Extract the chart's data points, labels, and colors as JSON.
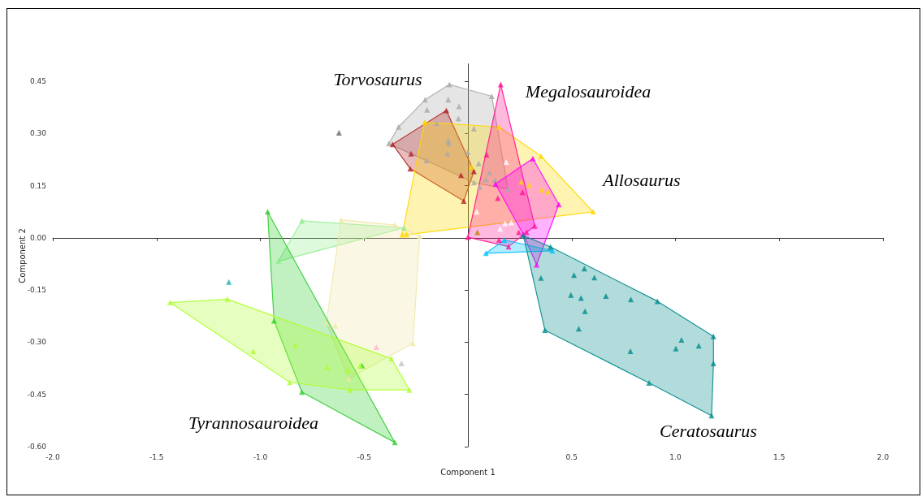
{
  "chart_data": {
    "type": "scatter",
    "xlabel": "Component 1",
    "ylabel": "Component 2",
    "marker": "triangle",
    "xlim": [
      -2,
      2
    ],
    "ylim": [
      -0.6,
      0.5
    ],
    "xticks": [
      {
        "value": -2,
        "label": "-2.0"
      },
      {
        "value": -1.5,
        "label": "-1.5"
      },
      {
        "value": -1,
        "label": "-1.0"
      },
      {
        "value": -0.5,
        "label": "-0.5"
      },
      {
        "value": 0,
        "label": null
      },
      {
        "value": 0.5,
        "label": "0.5"
      },
      {
        "value": 1,
        "label": "1.0"
      },
      {
        "value": 1.5,
        "label": "1.5"
      },
      {
        "value": 2,
        "label": "2.0"
      }
    ],
    "yticks": [
      {
        "value": -0.6,
        "label": "-0.60"
      },
      {
        "value": -0.45,
        "label": "-0.45"
      },
      {
        "value": -0.3,
        "label": "-0.30"
      },
      {
        "value": -0.15,
        "label": "-0.15"
      },
      {
        "value": 0,
        "label": "0.00"
      },
      {
        "value": 0.15,
        "label": "0.15"
      },
      {
        "value": 0.3,
        "label": "0.30"
      },
      {
        "value": 0.45,
        "label": "0.45"
      }
    ],
    "series": [
      {
        "type": "area",
        "marker": "none",
        "color": "#a9a9a9",
        "x": [
          -0.089,
          0.115,
          0.193,
          0.029,
          -0.2,
          -0.381,
          -0.334,
          -0.206
        ],
        "values": [
          0.441,
          0.407,
          0.14,
          0.159,
          0.222,
          0.271,
          0.319,
          0.397
        ]
      },
      {
        "type": "area",
        "marker": "none",
        "color": "#b22222",
        "x": [
          -0.104,
          0.029,
          -0.02,
          -0.278,
          -0.363
        ],
        "values": [
          0.366,
          0.191,
          0.106,
          0.199,
          0.269
        ]
      },
      {
        "type": "area",
        "marker": "none",
        "color": "#ffd700",
        "x": [
          -0.209,
          0.15,
          0.352,
          0.603,
          -0.295,
          -0.317
        ],
        "values": [
          0.332,
          0.319,
          0.235,
          0.075,
          0.009,
          0.009
        ]
      },
      {
        "type": "area",
        "marker": "none",
        "color": "#ff1493",
        "x": [
          0.158,
          0.322,
          0.283,
          0.196,
          0.0
        ],
        "values": [
          0.441,
          0.034,
          0.016,
          -0.025,
          0.002
        ]
      },
      {
        "type": "area",
        "marker": "none",
        "color": "#ff00ff",
        "x": [
          0.313,
          0.438,
          0.331,
          0.266,
          0.133
        ],
        "values": [
          0.228,
          0.096,
          -0.077,
          0.011,
          0.155
        ]
      },
      {
        "type": "area",
        "marker": "none",
        "color": "#00bfff",
        "x": [
          0.087,
          0.176,
          0.407
        ],
        "values": [
          -0.044,
          -0.006,
          -0.037
        ]
      },
      {
        "type": "area",
        "marker": "none",
        "color": "#008b8b",
        "x": [
          0.267,
          0.398,
          0.913,
          1.183,
          1.183,
          1.174,
          0.873,
          0.371
        ],
        "values": [
          0.007,
          -0.026,
          -0.182,
          -0.283,
          -0.361,
          -0.511,
          -0.417,
          -0.265
        ]
      },
      {
        "type": "area",
        "marker": "none",
        "color": "#90ee90",
        "x": [
          -0.8,
          -0.308,
          -0.913
        ],
        "values": [
          0.049,
          0.029,
          -0.067
        ]
      },
      {
        "type": "area",
        "marker": "none",
        "color": "#eee8aa",
        "x": [
          -0.611,
          -0.352,
          -0.232,
          -0.265,
          -0.574,
          -0.682
        ],
        "values": [
          0.052,
          0.037,
          0.005,
          -0.303,
          -0.404,
          -0.244
        ]
      },
      {
        "type": "area",
        "marker": "none",
        "color": "#32cd32",
        "x": [
          -0.965,
          -0.352,
          -0.8,
          -0.934
        ],
        "values": [
          0.075,
          -0.588,
          -0.443,
          -0.238
        ]
      },
      {
        "type": "area",
        "marker": "none",
        "color": "#adff2f",
        "x": [
          -1.435,
          -1.159,
          -0.369,
          -0.282,
          -0.569,
          -0.858
        ],
        "values": [
          -0.186,
          -0.176,
          -0.347,
          -0.437,
          -0.437,
          -0.415
        ]
      },
      {
        "color": "#a9a9a9",
        "x": [
          -0.089,
          -0.206,
          -0.095,
          -0.043,
          -0.197,
          -0.046,
          0.115,
          -0.334,
          -0.381,
          -0.151,
          -0.095,
          -0.091,
          -0.098,
          -0.2,
          0.029,
          -0.001,
          0.052,
          0.104,
          0.087,
          0.13,
          0.029,
          0.057,
          0.193
        ],
        "values": [
          0.441,
          0.397,
          0.397,
          0.378,
          0.368,
          0.343,
          0.407,
          0.319,
          0.271,
          0.329,
          0.279,
          0.271,
          0.242,
          0.222,
          0.314,
          0.246,
          0.214,
          0.187,
          0.168,
          0.166,
          0.159,
          0.146,
          0.14
        ]
      },
      {
        "color": "#b22222",
        "x": [
          -0.104,
          -0.363,
          -0.274,
          -0.278,
          -0.033,
          0.029,
          -0.02
        ],
        "values": [
          0.366,
          0.269,
          0.242,
          0.199,
          0.18,
          0.191,
          0.106
        ]
      },
      {
        "color": "#ffd700",
        "x": [
          -0.209,
          0.15,
          0.352,
          0.603,
          -0.295,
          -0.317,
          0.016,
          0.257,
          0.294,
          0.355,
          0.386
        ],
        "values": [
          0.332,
          0.319,
          0.235,
          0.075,
          0.009,
          0.009,
          0.204,
          0.161,
          0.152,
          0.138,
          0.133
        ]
      },
      {
        "color": "#ff1493",
        "x": [
          0.158,
          0.0,
          0.09,
          0.144,
          0.263,
          0.322,
          0.283,
          0.245,
          0.15,
          0.196
        ],
        "values": [
          0.441,
          0.002,
          0.239,
          0.114,
          0.131,
          0.034,
          0.016,
          0.016,
          -0.006,
          -0.025
        ]
      },
      {
        "color": "#ff00ff",
        "x": [
          0.313,
          0.438,
          0.331,
          0.133,
          0.266
        ],
        "values": [
          0.228,
          0.096,
          -0.077,
          0.155,
          0.011
        ]
      },
      {
        "color": "#00bfff",
        "x": [
          0.087,
          0.176,
          0.407
        ],
        "values": [
          -0.044,
          -0.006,
          -0.037
        ]
      },
      {
        "color": "#008b8b",
        "x": [
          0.267,
          0.398,
          0.913,
          1.183,
          1.183,
          1.174,
          0.873,
          0.371,
          0.352,
          0.561,
          0.511,
          0.609,
          0.496,
          0.545,
          0.665,
          0.785,
          0.564,
          0.534,
          0.783,
          1.029,
          1.002,
          1.112
        ],
        "values": [
          0.007,
          -0.026,
          -0.182,
          -0.283,
          -0.361,
          -0.511,
          -0.417,
          -0.265,
          -0.115,
          -0.088,
          -0.107,
          -0.114,
          -0.164,
          -0.173,
          -0.167,
          -0.177,
          -0.211,
          -0.261,
          -0.326,
          -0.293,
          -0.318,
          -0.31
        ]
      },
      {
        "color": "#90ee90",
        "x": [
          -0.8,
          -0.308,
          -0.913
        ],
        "values": [
          0.049,
          0.029,
          -0.067
        ]
      },
      {
        "color": "#eee8aa",
        "x": [
          -0.611,
          -0.352,
          -0.232,
          -0.265,
          -0.574,
          -0.682,
          -0.639
        ],
        "values": [
          0.052,
          0.037,
          0.005,
          -0.303,
          -0.404,
          -0.244,
          -0.252
        ]
      },
      {
        "color": "#32cd32",
        "x": [
          -0.965,
          -0.934,
          -0.8,
          -0.352,
          -0.51
        ],
        "values": [
          0.075,
          -0.238,
          -0.443,
          -0.588,
          -0.367
        ]
      },
      {
        "color": "#adff2f",
        "x": [
          -1.435,
          -1.159,
          -0.369,
          -0.282,
          -0.569,
          -0.858,
          -1.034,
          -0.832,
          -0.678,
          -0.578,
          -0.519
        ],
        "values": [
          -0.186,
          -0.176,
          -0.347,
          -0.437,
          -0.437,
          -0.415,
          -0.326,
          -0.308,
          -0.372,
          -0.38,
          -0.367
        ]
      },
      {
        "color": "#ffffff",
        "x": [
          0.185,
          0.042,
          0.179,
          0.209,
          0.155
        ],
        "values": [
          0.218,
          0.075,
          0.042,
          0.044,
          0.026
        ]
      },
      {
        "color": "#696969",
        "x": [
          -0.621
        ],
        "values": [
          0.302
        ]
      },
      {
        "color": "#b8860b",
        "x": [
          0.046
        ],
        "values": [
          0.016
        ]
      },
      {
        "color": "#20b2aa",
        "x": [
          -1.152
        ],
        "values": [
          -0.127
        ]
      },
      {
        "color": "#ffb6c1",
        "x": [
          -0.441
        ],
        "values": [
          -0.314
        ]
      },
      {
        "color": "#c0c0c0",
        "x": [
          -0.32
        ],
        "values": [
          -0.361
        ]
      }
    ],
    "annotations": [
      "Torvosaurus",
      "Megalosauroidea",
      "Allosaurus",
      "Ceratosaurus",
      "Tyrannosauroidea"
    ]
  }
}
